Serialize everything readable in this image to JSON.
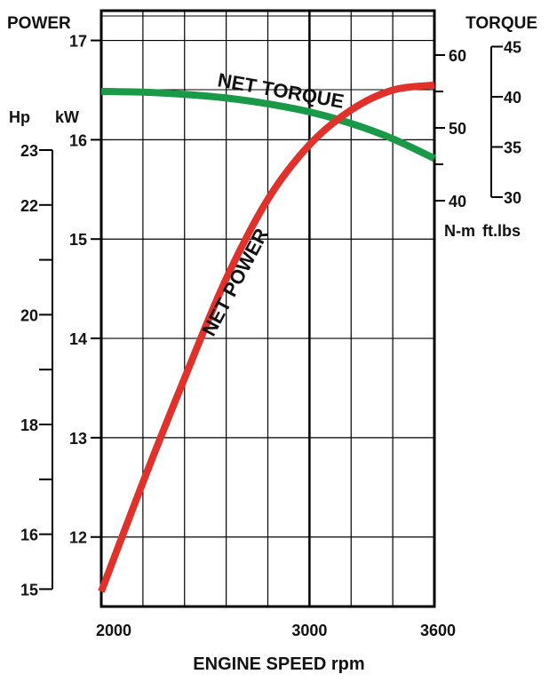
{
  "chart_data": {
    "type": "line",
    "title": "",
    "xlabel": "ENGINE SPEED rpm",
    "x_ticks": [
      2000,
      3000,
      3600
    ],
    "x_range": [
      2000,
      3600
    ],
    "grid": true,
    "left_axis": {
      "title": "POWER",
      "units": [
        "Hp",
        "kW"
      ],
      "kw_ticks": [
        17,
        16,
        15,
        14,
        13,
        12
      ],
      "hp_ticks": [
        23,
        22,
        20,
        18,
        16,
        15
      ],
      "kw_range": [
        11.3,
        17.3
      ]
    },
    "right_axis": {
      "title": "TORQUE",
      "units": [
        "N-m",
        "ft.lbs"
      ],
      "nm_ticks": [
        60,
        50,
        40
      ],
      "ftlb_ticks": [
        45,
        40,
        35,
        30
      ],
      "nm_range": [
        40,
        60
      ]
    },
    "series": [
      {
        "name": "NET TORQUE",
        "color": "#1a9a48",
        "axis": "right",
        "unit": "N-m",
        "x": [
          2000,
          2200,
          2400,
          2600,
          2800,
          3000,
          3200,
          3400,
          3600
        ],
        "y": [
          55.0,
          54.9,
          54.6,
          54.1,
          53.3,
          52.2,
          50.6,
          48.5,
          45.8
        ]
      },
      {
        "name": "NET POWER",
        "color": "#e0322b",
        "axis": "left",
        "unit": "kW",
        "x": [
          2000,
          2200,
          2400,
          2600,
          2800,
          3000,
          3200,
          3400,
          3600
        ],
        "y": [
          11.45,
          12.55,
          13.6,
          14.6,
          15.4,
          15.95,
          16.3,
          16.5,
          16.55
        ]
      }
    ]
  }
}
